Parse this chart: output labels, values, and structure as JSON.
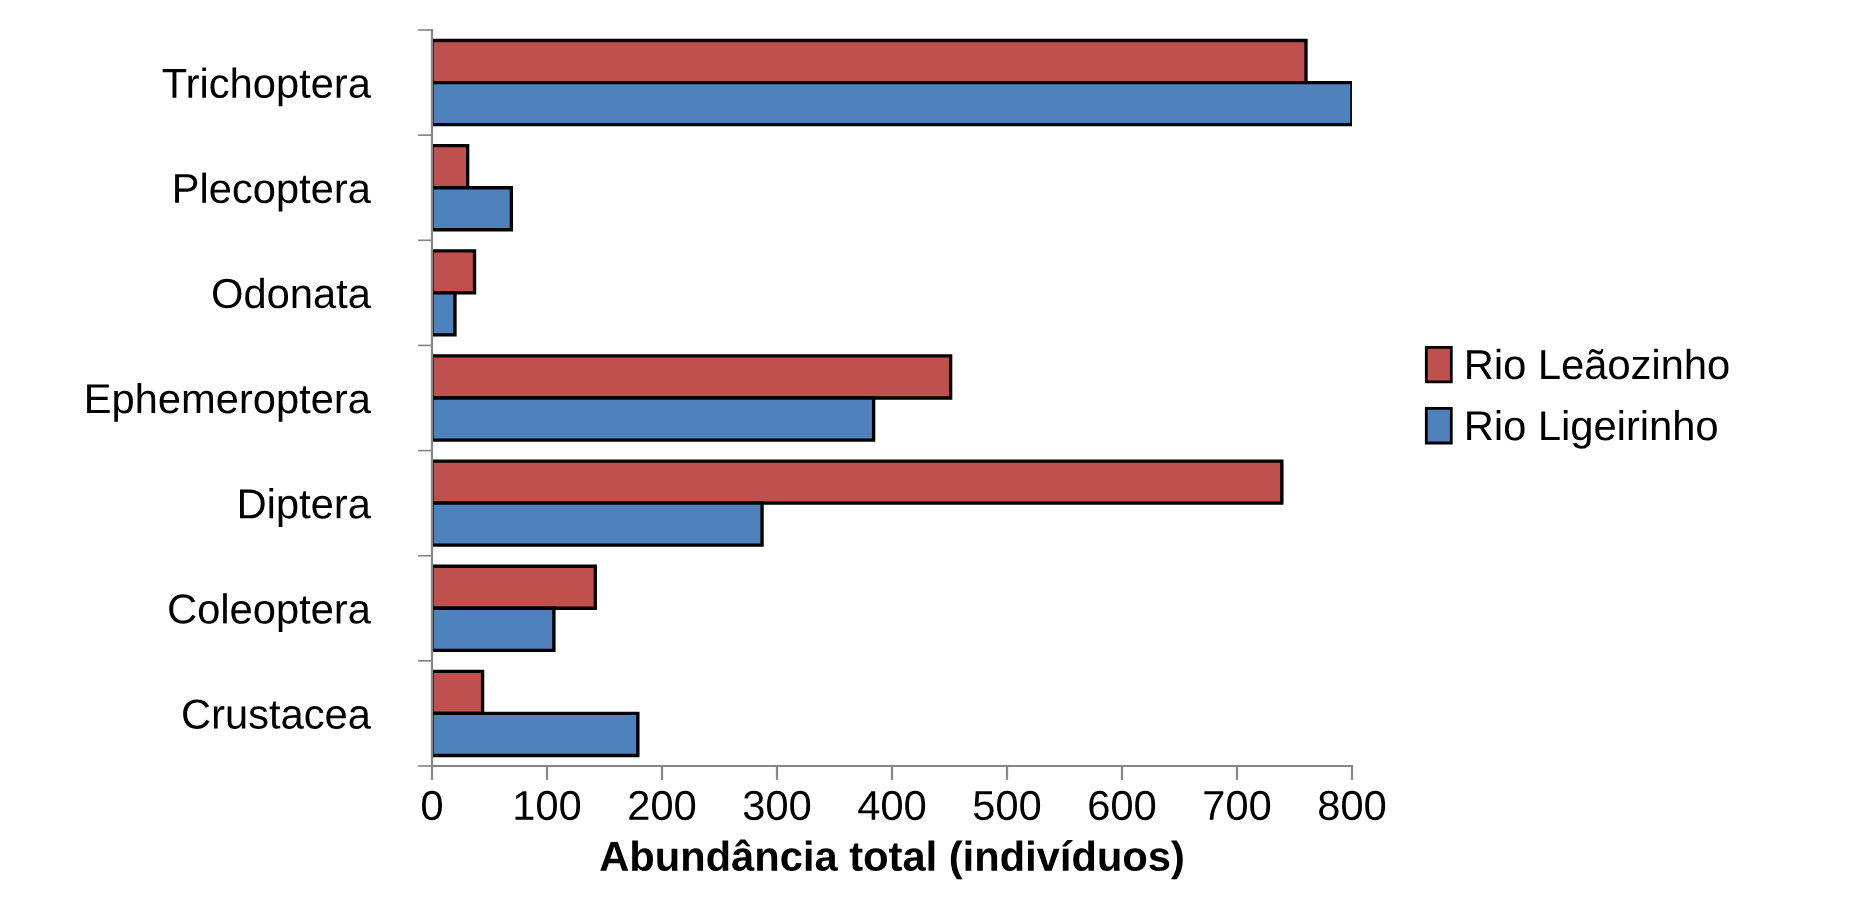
{
  "chart_data": {
    "type": "bar",
    "orientation": "horizontal",
    "xlabel": "Abundância total (indivíduos)",
    "categories": [
      "Trichoptera",
      "Plecoptera",
      "Odonata",
      "Ephemeroptera",
      "Diptera",
      "Coleoptera",
      "Crustacea"
    ],
    "series": [
      {
        "name": "Rio Leãozinho",
        "color": "#c0504d",
        "values": [
          760,
          31,
          37,
          451,
          739,
          142,
          44
        ]
      },
      {
        "name": "Rio Ligeirinho",
        "color": "#4f81bd",
        "values": [
          800,
          69,
          20,
          384,
          287,
          106,
          179
        ]
      }
    ],
    "xlim": [
      0,
      800
    ],
    "xticks": [
      0,
      100,
      200,
      300,
      400,
      500,
      600,
      700,
      800
    ],
    "grid": false,
    "legend": "right"
  }
}
